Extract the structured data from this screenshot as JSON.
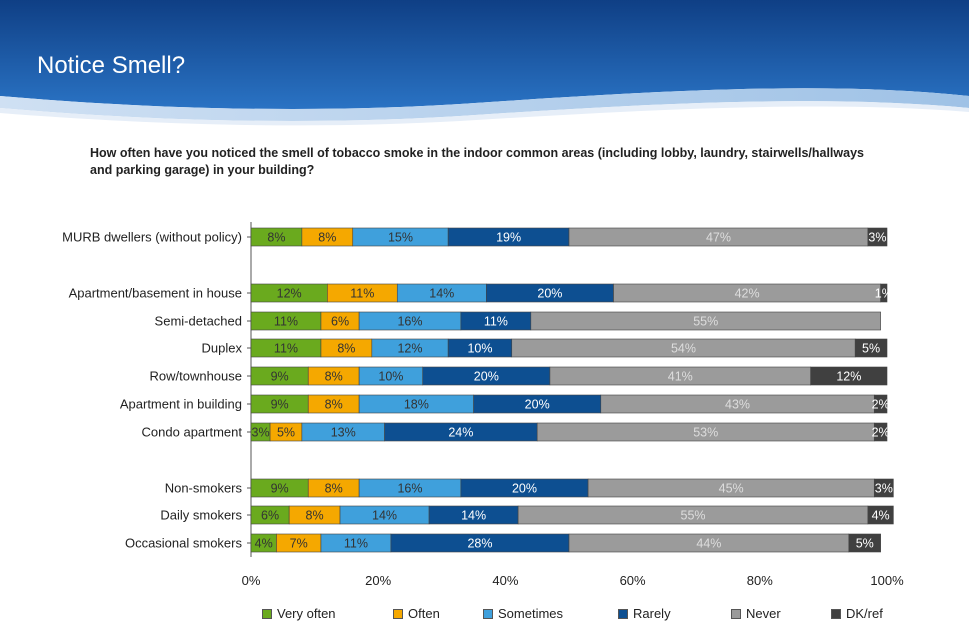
{
  "slide": {
    "title": "Notice Smell?",
    "question": "How often have you noticed the smell of tobacco smoke in the indoor common areas (including lobby, laundry, stairwells/hallways and parking garage) in your building?"
  },
  "colors": {
    "very_often": "#6aaa1e",
    "often": "#f5a800",
    "sometimes": "#3fa0dc",
    "rarely": "#0d4f91",
    "never": "#9b9b9b",
    "dk_ref": "#404040",
    "header_blue": "#1b5aa6"
  },
  "chart_data": {
    "type": "bar",
    "orientation": "horizontal",
    "stacked": true,
    "categories": [
      "MURB dwellers (without policy)",
      "Apartment/basement in house",
      "Semi-detached",
      "Duplex",
      "Row/townhouse",
      "Apartment in building",
      "Condo apartment",
      "Non-smokers",
      "Daily smokers",
      "Occasional smokers"
    ],
    "series": [
      {
        "name": "Very often",
        "values": [
          8,
          12,
          11,
          11,
          9,
          9,
          3,
          9,
          6,
          4
        ]
      },
      {
        "name": "Often",
        "values": [
          8,
          11,
          6,
          8,
          8,
          8,
          5,
          8,
          8,
          7
        ]
      },
      {
        "name": "Sometimes",
        "values": [
          15,
          14,
          16,
          12,
          10,
          18,
          13,
          16,
          14,
          11
        ]
      },
      {
        "name": "Rarely",
        "values": [
          19,
          20,
          11,
          10,
          20,
          20,
          24,
          20,
          14,
          28
        ]
      },
      {
        "name": "Never",
        "values": [
          47,
          42,
          55,
          54,
          41,
          43,
          53,
          45,
          55,
          44
        ]
      },
      {
        "name": "DK/ref",
        "values": [
          3,
          1,
          0,
          5,
          12,
          2,
          2,
          3,
          4,
          5
        ]
      }
    ],
    "labels": [
      [
        "8%",
        "8%",
        "15%",
        "19%",
        "47%",
        "3%"
      ],
      [
        "12%",
        "11%",
        "14%",
        "20%",
        "42%",
        "1%"
      ],
      [
        "11%",
        "6%",
        "16%",
        "11%",
        "55%",
        ""
      ],
      [
        "11%",
        "8%",
        "12%",
        "10%",
        "54%",
        "5%"
      ],
      [
        "9%",
        "8%",
        "10%",
        "20%",
        "41%",
        "12%"
      ],
      [
        "9%",
        "8%",
        "18%",
        "20%",
        "43%",
        "2%"
      ],
      [
        "3%",
        "5%",
        "13%",
        "24%",
        "53%",
        "2%"
      ],
      [
        "9%",
        "8%",
        "16%",
        "20%",
        "45%",
        "3%"
      ],
      [
        "6%",
        "8%",
        "14%",
        "14%",
        "55%",
        "4%"
      ],
      [
        "4%",
        "7%",
        "11%",
        "28%",
        "44%",
        "5%"
      ]
    ],
    "xticks": [
      "0%",
      "20%",
      "40%",
      "60%",
      "80%",
      "100%"
    ],
    "xlim": [
      0,
      100
    ],
    "legend_position": "bottom",
    "grid": false
  }
}
